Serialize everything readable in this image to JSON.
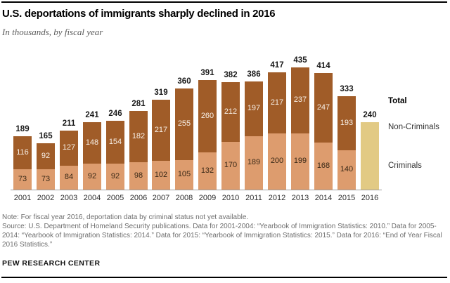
{
  "header": {
    "title": "U.S. deportations of immigrants sharply declined in 2016",
    "subtitle": "In thousands, by fiscal year"
  },
  "legend": {
    "total": "Total",
    "non_criminals": "Non-Criminals",
    "criminals": "Criminals"
  },
  "chart_data": {
    "type": "bar",
    "stacked": true,
    "title": "U.S. deportations of immigrants sharply declined in 2016",
    "subtitle": "In thousands, by fiscal year",
    "unit": "thousands",
    "categories": [
      "2001",
      "2002",
      "2003",
      "2004",
      "2005",
      "2006",
      "2007",
      "2008",
      "2009",
      "2010",
      "2011",
      "2012",
      "2013",
      "2014",
      "2015",
      "2016"
    ],
    "series": [
      {
        "name": "Criminals",
        "color": "#dd9c6e",
        "label_color": "#3a2917",
        "values": [
          73,
          73,
          84,
          92,
          92,
          98,
          102,
          105,
          132,
          170,
          189,
          200,
          199,
          168,
          140,
          null
        ]
      },
      {
        "name": "Non-Criminals",
        "color": "#a05c28",
        "label_color": "#f7efe6",
        "values": [
          116,
          92,
          127,
          148,
          154,
          182,
          217,
          255,
          260,
          212,
          197,
          217,
          237,
          247,
          193,
          null
        ]
      }
    ],
    "totals": [
      189,
      165,
      211,
      241,
      246,
      281,
      319,
      360,
      391,
      382,
      386,
      417,
      435,
      414,
      333,
      240
    ],
    "total_only_color": "#e2ca84",
    "note_2016": "2016 bar shows total only; criminal-status breakdown not available",
    "ylim": [
      0,
      450
    ],
    "grid": false,
    "legend_position": "right",
    "axis_color": "#9e9e9e"
  },
  "footer": {
    "note": "Note: For fiscal year 2016, deportation data by criminal status not yet available.",
    "source": "Source: U.S. Department of Homeland Security publications. Data for 2001-2004: “Yearbook of Immigration Statistics: 2010.” Data for 2005-2014: “Yearbook of Immigration Statistics: 2014.” Data for 2015: “Yearbook of Immigration Statistics: 2015.” Data for 2016: “End of Year Fiscal 2016 Statistics.”",
    "brand": "PEW RESEARCH CENTER"
  }
}
